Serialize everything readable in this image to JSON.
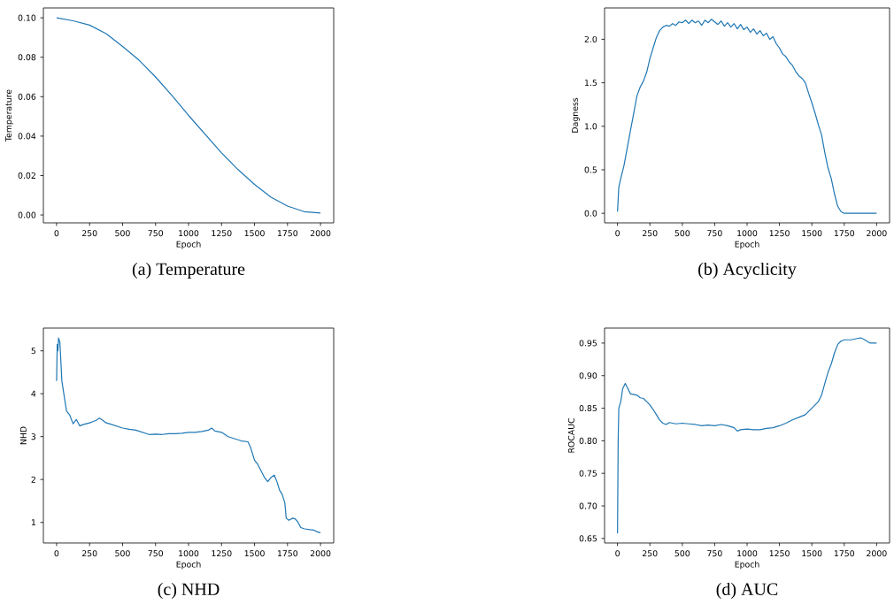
{
  "chart_data": [
    {
      "type": "line",
      "title": "(a) Temperature",
      "xlabel": "Epoch",
      "ylabel": "Temperature",
      "xlim": [
        -100,
        2100
      ],
      "ylim": [
        -0.004,
        0.105
      ],
      "xticks": [
        0,
        250,
        500,
        750,
        1000,
        1250,
        1500,
        1750,
        2000
      ],
      "yticks": [
        {
          "value": 0,
          "label": "0.00"
        },
        {
          "value": 0.02,
          "label": "0.02"
        },
        {
          "value": 0.04,
          "label": "0.04"
        },
        {
          "value": 0.06,
          "label": "0.06"
        },
        {
          "value": 0.08,
          "label": "0.08"
        },
        {
          "value": 0.1,
          "label": "0.10"
        }
      ],
      "x": [
        0,
        125,
        250,
        375,
        500,
        625,
        750,
        875,
        1000,
        1125,
        1250,
        1375,
        1500,
        1625,
        1750,
        1875,
        2000
      ],
      "series": [
        {
          "color": "#1f77b4",
          "values": [
            0.1,
            0.0985,
            0.0963,
            0.092,
            0.0855,
            0.0785,
            0.07,
            0.0605,
            0.0505,
            0.041,
            0.0315,
            0.023,
            0.0155,
            0.009,
            0.0045,
            0.0017,
            0.001
          ]
        }
      ]
    },
    {
      "type": "line",
      "title": "(b) Acyclicity",
      "xlabel": "Epoch",
      "ylabel": "Dagness",
      "xlim": [
        -100,
        2100
      ],
      "ylim": [
        -0.11,
        2.36
      ],
      "xticks": [
        0,
        250,
        500,
        750,
        1000,
        1250,
        1500,
        1750,
        2000
      ],
      "yticks": [
        {
          "value": 0,
          "label": "0.0"
        },
        {
          "value": 0.5,
          "label": "0.5"
        },
        {
          "value": 1,
          "label": "1.0"
        },
        {
          "value": 1.5,
          "label": "1.5"
        },
        {
          "value": 2,
          "label": "2.0"
        }
      ],
      "x": [
        0,
        10,
        25,
        50,
        75,
        100,
        125,
        150,
        175,
        200,
        225,
        250,
        275,
        300,
        325,
        350,
        375,
        400,
        425,
        450,
        475,
        500,
        525,
        550,
        575,
        600,
        625,
        650,
        675,
        700,
        725,
        750,
        775,
        800,
        825,
        850,
        875,
        900,
        925,
        950,
        975,
        1000,
        1025,
        1050,
        1075,
        1100,
        1125,
        1150,
        1175,
        1200,
        1225,
        1250,
        1275,
        1300,
        1325,
        1350,
        1375,
        1400,
        1425,
        1450,
        1475,
        1500,
        1525,
        1550,
        1575,
        1600,
        1625,
        1650,
        1675,
        1700,
        1725,
        1750,
        1800,
        2000
      ],
      "series": [
        {
          "color": "#1f77b4",
          "values": [
            0.02,
            0.3,
            0.4,
            0.55,
            0.75,
            0.95,
            1.15,
            1.35,
            1.45,
            1.52,
            1.62,
            1.78,
            1.9,
            2.02,
            2.1,
            2.14,
            2.16,
            2.15,
            2.18,
            2.16,
            2.2,
            2.19,
            2.22,
            2.18,
            2.22,
            2.19,
            2.21,
            2.16,
            2.22,
            2.19,
            2.23,
            2.2,
            2.17,
            2.21,
            2.15,
            2.19,
            2.14,
            2.18,
            2.12,
            2.17,
            2.11,
            2.14,
            2.08,
            2.12,
            2.06,
            2.1,
            2.04,
            2.07,
            2.0,
            2.03,
            1.95,
            1.9,
            1.83,
            1.8,
            1.74,
            1.7,
            1.63,
            1.58,
            1.55,
            1.5,
            1.38,
            1.27,
            1.15,
            1.02,
            0.9,
            0.7,
            0.52,
            0.4,
            0.22,
            0.08,
            0.02,
            0.0,
            0.0,
            0.0
          ]
        }
      ]
    },
    {
      "type": "line",
      "title": "(c) NHD",
      "xlabel": "Epoch",
      "ylabel": "NHD",
      "xlim": [
        -100,
        2100
      ],
      "ylim": [
        0.52,
        5.53
      ],
      "xticks": [
        0,
        250,
        500,
        750,
        1000,
        1250,
        1500,
        1750,
        2000
      ],
      "yticks": [
        1,
        2,
        3,
        4,
        5
      ],
      "x": [
        0,
        5,
        10,
        15,
        25,
        40,
        50,
        60,
        75,
        100,
        125,
        150,
        175,
        200,
        225,
        250,
        275,
        300,
        325,
        350,
        375,
        400,
        450,
        500,
        550,
        600,
        650,
        700,
        750,
        800,
        850,
        900,
        950,
        1000,
        1050,
        1100,
        1150,
        1175,
        1200,
        1250,
        1300,
        1350,
        1400,
        1450,
        1470,
        1500,
        1525,
        1550,
        1575,
        1600,
        1625,
        1650,
        1670,
        1690,
        1710,
        1730,
        1740,
        1760,
        1790,
        1810,
        1830,
        1850,
        1880,
        1920,
        1950,
        1975,
        2000
      ],
      "series": [
        {
          "color": "#1f77b4",
          "values": [
            4.3,
            5.15,
            5.0,
            5.3,
            5.2,
            4.3,
            4.1,
            3.9,
            3.6,
            3.5,
            3.3,
            3.4,
            3.25,
            3.28,
            3.3,
            3.32,
            3.35,
            3.38,
            3.43,
            3.38,
            3.32,
            3.3,
            3.25,
            3.2,
            3.17,
            3.15,
            3.1,
            3.05,
            3.06,
            3.05,
            3.07,
            3.07,
            3.08,
            3.1,
            3.1,
            3.12,
            3.15,
            3.2,
            3.13,
            3.1,
            3.0,
            2.95,
            2.9,
            2.88,
            2.75,
            2.45,
            2.35,
            2.2,
            2.05,
            1.95,
            2.05,
            2.1,
            1.95,
            1.75,
            1.65,
            1.45,
            1.1,
            1.05,
            1.1,
            1.08,
            1.0,
            0.88,
            0.85,
            0.83,
            0.82,
            0.78,
            0.76
          ]
        }
      ]
    },
    {
      "type": "line",
      "title": "(d) AUC",
      "xlabel": "Epoch",
      "ylabel": "ROCAUC",
      "xlim": [
        -100,
        2100
      ],
      "ylim": [
        0.643,
        0.973
      ],
      "xticks": [
        0,
        250,
        500,
        750,
        1000,
        1250,
        1500,
        1750,
        2000
      ],
      "yticks": [
        0.65,
        {
          "value": 0.7,
          "label": "0.70"
        },
        0.75,
        {
          "value": 0.8,
          "label": "0.80"
        },
        0.85,
        {
          "value": 0.9,
          "label": "0.90"
        },
        0.95
      ],
      "x": [
        0,
        5,
        10,
        25,
        40,
        60,
        75,
        100,
        125,
        150,
        175,
        200,
        225,
        250,
        275,
        300,
        325,
        350,
        375,
        400,
        450,
        500,
        550,
        600,
        650,
        700,
        750,
        800,
        850,
        900,
        925,
        950,
        1000,
        1050,
        1100,
        1150,
        1200,
        1250,
        1300,
        1350,
        1400,
        1450,
        1500,
        1550,
        1575,
        1600,
        1625,
        1650,
        1675,
        1700,
        1725,
        1750,
        1800,
        1850,
        1875,
        1900,
        1950,
        2000
      ],
      "series": [
        {
          "color": "#1f77b4",
          "values": [
            0.658,
            0.8,
            0.85,
            0.86,
            0.88,
            0.888,
            0.882,
            0.872,
            0.871,
            0.87,
            0.866,
            0.865,
            0.86,
            0.855,
            0.848,
            0.84,
            0.832,
            0.827,
            0.825,
            0.828,
            0.826,
            0.827,
            0.826,
            0.825,
            0.823,
            0.824,
            0.823,
            0.825,
            0.823,
            0.82,
            0.815,
            0.817,
            0.818,
            0.817,
            0.817,
            0.819,
            0.82,
            0.823,
            0.827,
            0.832,
            0.836,
            0.84,
            0.85,
            0.86,
            0.87,
            0.888,
            0.905,
            0.918,
            0.935,
            0.948,
            0.953,
            0.955,
            0.955,
            0.957,
            0.958,
            0.956,
            0.95,
            0.95
          ]
        }
      ]
    }
  ]
}
